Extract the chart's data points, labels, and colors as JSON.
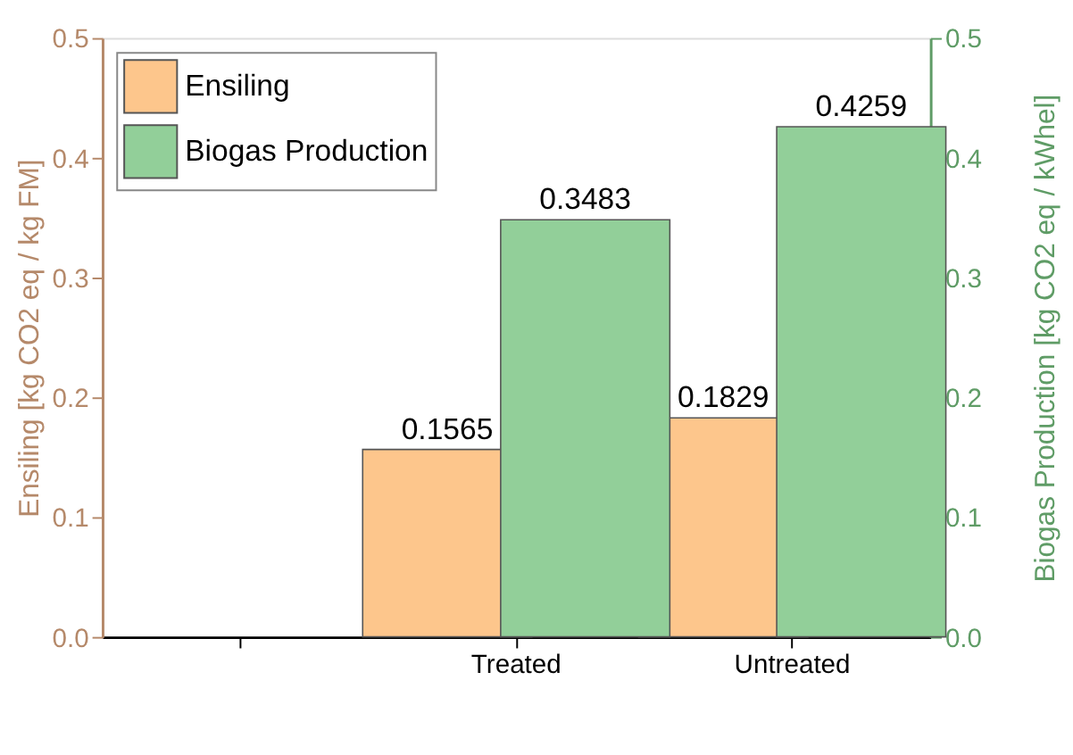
{
  "chart_data": {
    "type": "bar",
    "categories": [
      null,
      "Treated",
      "Untreated"
    ],
    "ylabel": "Ensiling [kg CO2 eq / kg FM]",
    "y2label": "Biogas Production [kg CO2 eq / kWhel]",
    "series": [
      {
        "name": "Ensiling",
        "color": "#fdc68c",
        "values": [
          null,
          0.1565,
          0.1829
        ]
      },
      {
        "name": "Biogas Production",
        "color": "#92cf99",
        "values": [
          null,
          0.3483,
          0.4259
        ],
        "axis": "y2"
      }
    ],
    "ylim": [
      0,
      0.5
    ],
    "yticks": [
      {
        "value": 0,
        "label": "0.0"
      },
      0.1,
      0.2,
      0.3,
      0.4,
      0.5
    ],
    "y2lim": [
      0,
      0.5
    ],
    "y2ticks": [
      {
        "value": 0,
        "label": "0.0"
      },
      0.1,
      0.2,
      0.3,
      0.4,
      0.5
    ],
    "data_labels": true,
    "legend": "top left",
    "grid": false
  }
}
